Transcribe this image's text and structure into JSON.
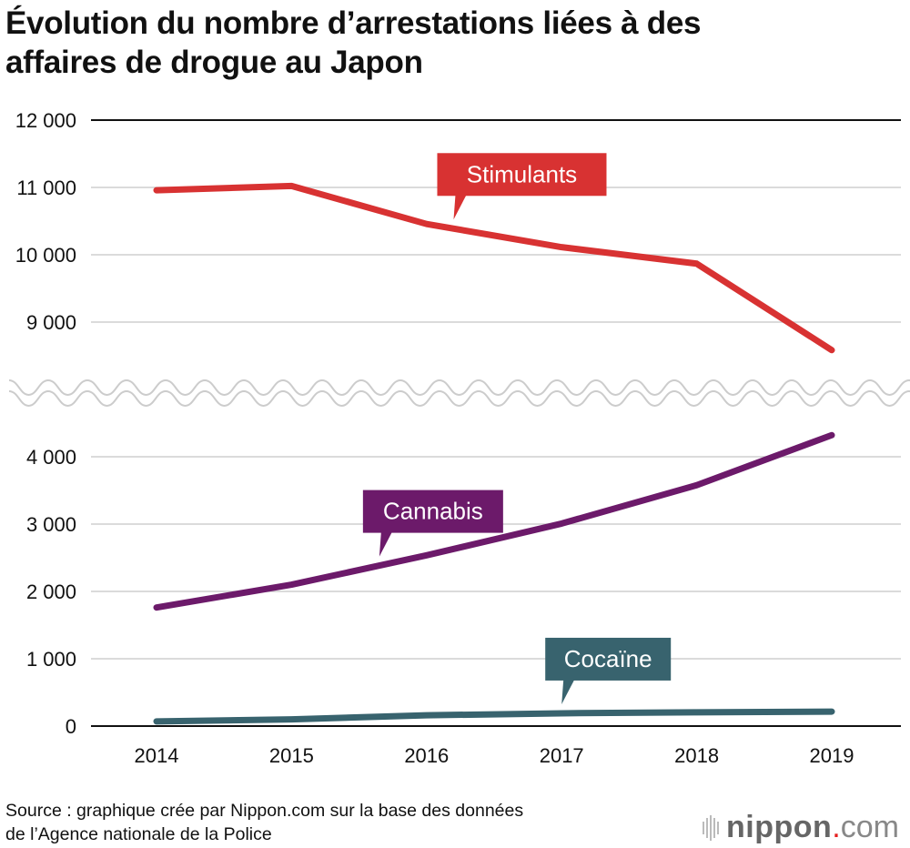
{
  "title": "Évolution du nombre d’arrestations liées à des affaires de drogue au Japon",
  "title_lines": [
    "Évolution du nombre d’arrestations liées à des",
    "affaires de drogue au Japon"
  ],
  "source_lines": [
    "Source : graphique crée par Nippon.com sur la base des données",
    "de l’Agence nationale de la Police"
  ],
  "logo": {
    "name": "nippon",
    "dot": ".",
    "suffix": "com"
  },
  "chart_data": {
    "type": "line",
    "title": "Évolution du nombre d’arrestations liées à des affaires de drogue au Japon",
    "xlabel": "",
    "ylabel": "",
    "x": [
      "2014",
      "2015",
      "2016",
      "2017",
      "2018",
      "2019"
    ],
    "axis_break": [
      4500,
      8000
    ],
    "ylim": [
      0,
      12000
    ],
    "upper_ticks": [
      "12 000",
      "11 000",
      "10 000",
      "9 000"
    ],
    "upper_tick_values": [
      12000,
      11000,
      10000,
      9000
    ],
    "lower_ticks": [
      "4 000",
      "3 000",
      "2 000",
      "1 000",
      "0"
    ],
    "lower_tick_values": [
      4000,
      3000,
      2000,
      1000,
      0
    ],
    "grid": true,
    "series": [
      {
        "name": "Stimulants",
        "color": "#d83232",
        "values": [
          10958,
          11022,
          10457,
          10113,
          9868,
          8584
        ],
        "label_at": 2.2
      },
      {
        "name": "Cannabis",
        "color": "#6c1a6a",
        "values": [
          1761,
          2101,
          2536,
          3008,
          3578,
          4321
        ],
        "label_at": 1.65
      },
      {
        "name": "Cocaïne",
        "color": "#38636e",
        "values": [
          70,
          100,
          160,
          190,
          205,
          215
        ],
        "label_at": 3.0
      }
    ]
  }
}
